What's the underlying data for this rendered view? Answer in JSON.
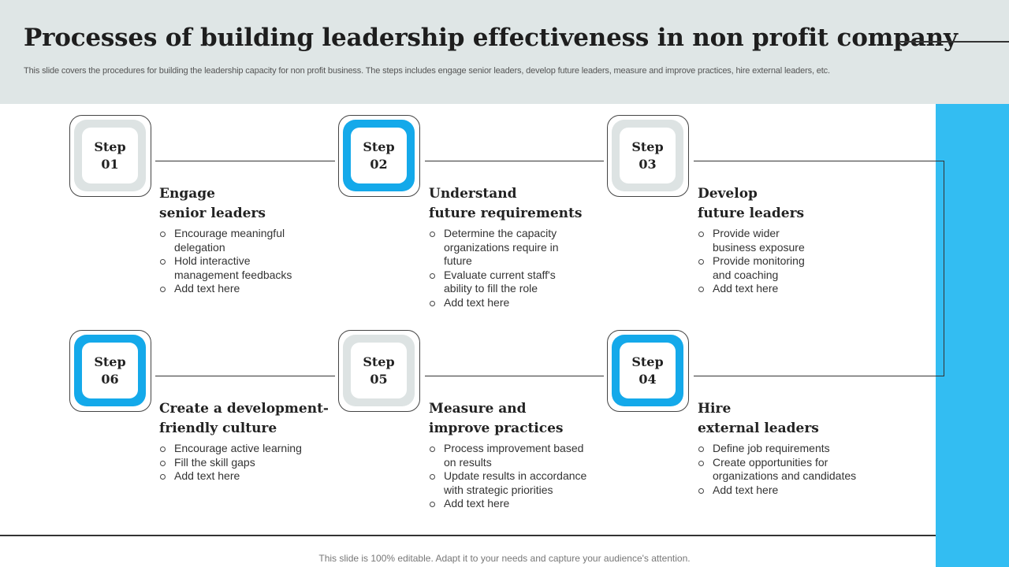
{
  "title": "Processes of building leadership effectiveness in non profit company",
  "subtitle": "This slide covers the procedures for building the leadership capacity for non profit business. The steps includes engage senior leaders, develop future leaders, measure and improve practices, hire external leaders, etc.",
  "footer": "This slide is 100% editable. Adapt it to your needs and capture your audience's attention.",
  "colors": {
    "accent": "#33bdf2",
    "step_ring_blue": "#14a9ea",
    "step_ring_gray": "#dde3e3",
    "header_bg": "#dfe6e6"
  },
  "steps": [
    {
      "step_word": "Step",
      "number": "01",
      "ring": "gray",
      "title_line1": "Engage",
      "title_line2": "senior leaders",
      "bullets": [
        "Encourage meaningful delegation",
        "Hold interactive management feedbacks",
        "Add text here"
      ]
    },
    {
      "step_word": "Step",
      "number": "02",
      "ring": "blue",
      "title_line1": "Understand",
      "title_line2": "future requirements",
      "bullets": [
        "Determine the capacity  organizations require in future",
        "Evaluate current staff's ability to fill the  role",
        "Add text here"
      ]
    },
    {
      "step_word": "Step",
      "number": "03",
      "ring": "gray",
      "title_line1": "Develop",
      "title_line2": "future leaders",
      "bullets": [
        "Provide wider business exposure",
        "Provide monitoring and coaching",
        "Add text here"
      ]
    },
    {
      "step_word": "Step",
      "number": "04",
      "ring": "blue",
      "title_line1": "Hire",
      "title_line2": "external leaders",
      "bullets": [
        "Define job requirements",
        "Create opportunities for organizations and candidates",
        "Add text here"
      ]
    },
    {
      "step_word": "Step",
      "number": "05",
      "ring": "gray",
      "title_line1": "Measure  and",
      "title_line2": "improve  practices",
      "bullets": [
        "Process improvement based on results",
        "Update results in accordance with strategic priorities",
        "Add text here"
      ]
    },
    {
      "step_word": "Step",
      "number": "06",
      "ring": "blue",
      "title_line1": "Create a development-",
      "title_line2": "friendly  culture",
      "bullets": [
        "Encourage active learning",
        "Fill the skill gaps",
        "Add text here"
      ]
    }
  ]
}
